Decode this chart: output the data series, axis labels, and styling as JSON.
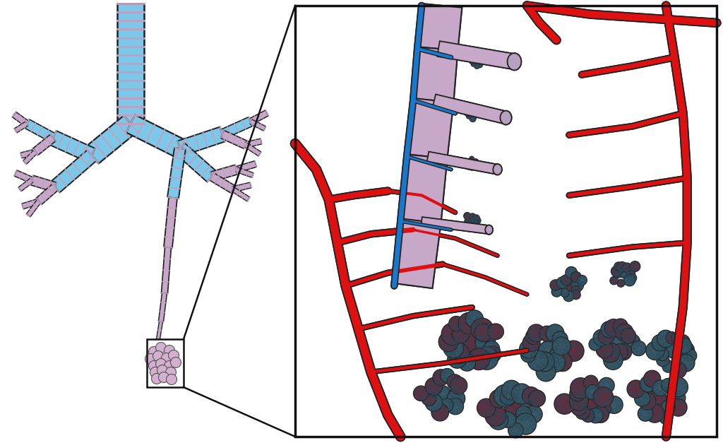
{
  "bg_color": "#ffffff",
  "trachea_blue": "#7DC8E8",
  "trachea_ring": "#C0A0C0",
  "bronchi_blue": "#7DC8E8",
  "bronchi_ring": "#B8A0B8",
  "bronchiole_pink": "#C8A8C8",
  "alveoli_small_fill": "#D4B0D0",
  "alveoli_small_edge": "#555555",
  "alveoli_large_dark": "#5C3040",
  "alveoli_large_teal": "#385868",
  "alveoli_mesh": "#2A4858",
  "artery_red": "#DD1111",
  "vein_blue": "#1878CC",
  "airway_lavender": "#C8A8C8",
  "airway_dark": "#9878A8",
  "outline": "#222222",
  "box_line": "#111111"
}
